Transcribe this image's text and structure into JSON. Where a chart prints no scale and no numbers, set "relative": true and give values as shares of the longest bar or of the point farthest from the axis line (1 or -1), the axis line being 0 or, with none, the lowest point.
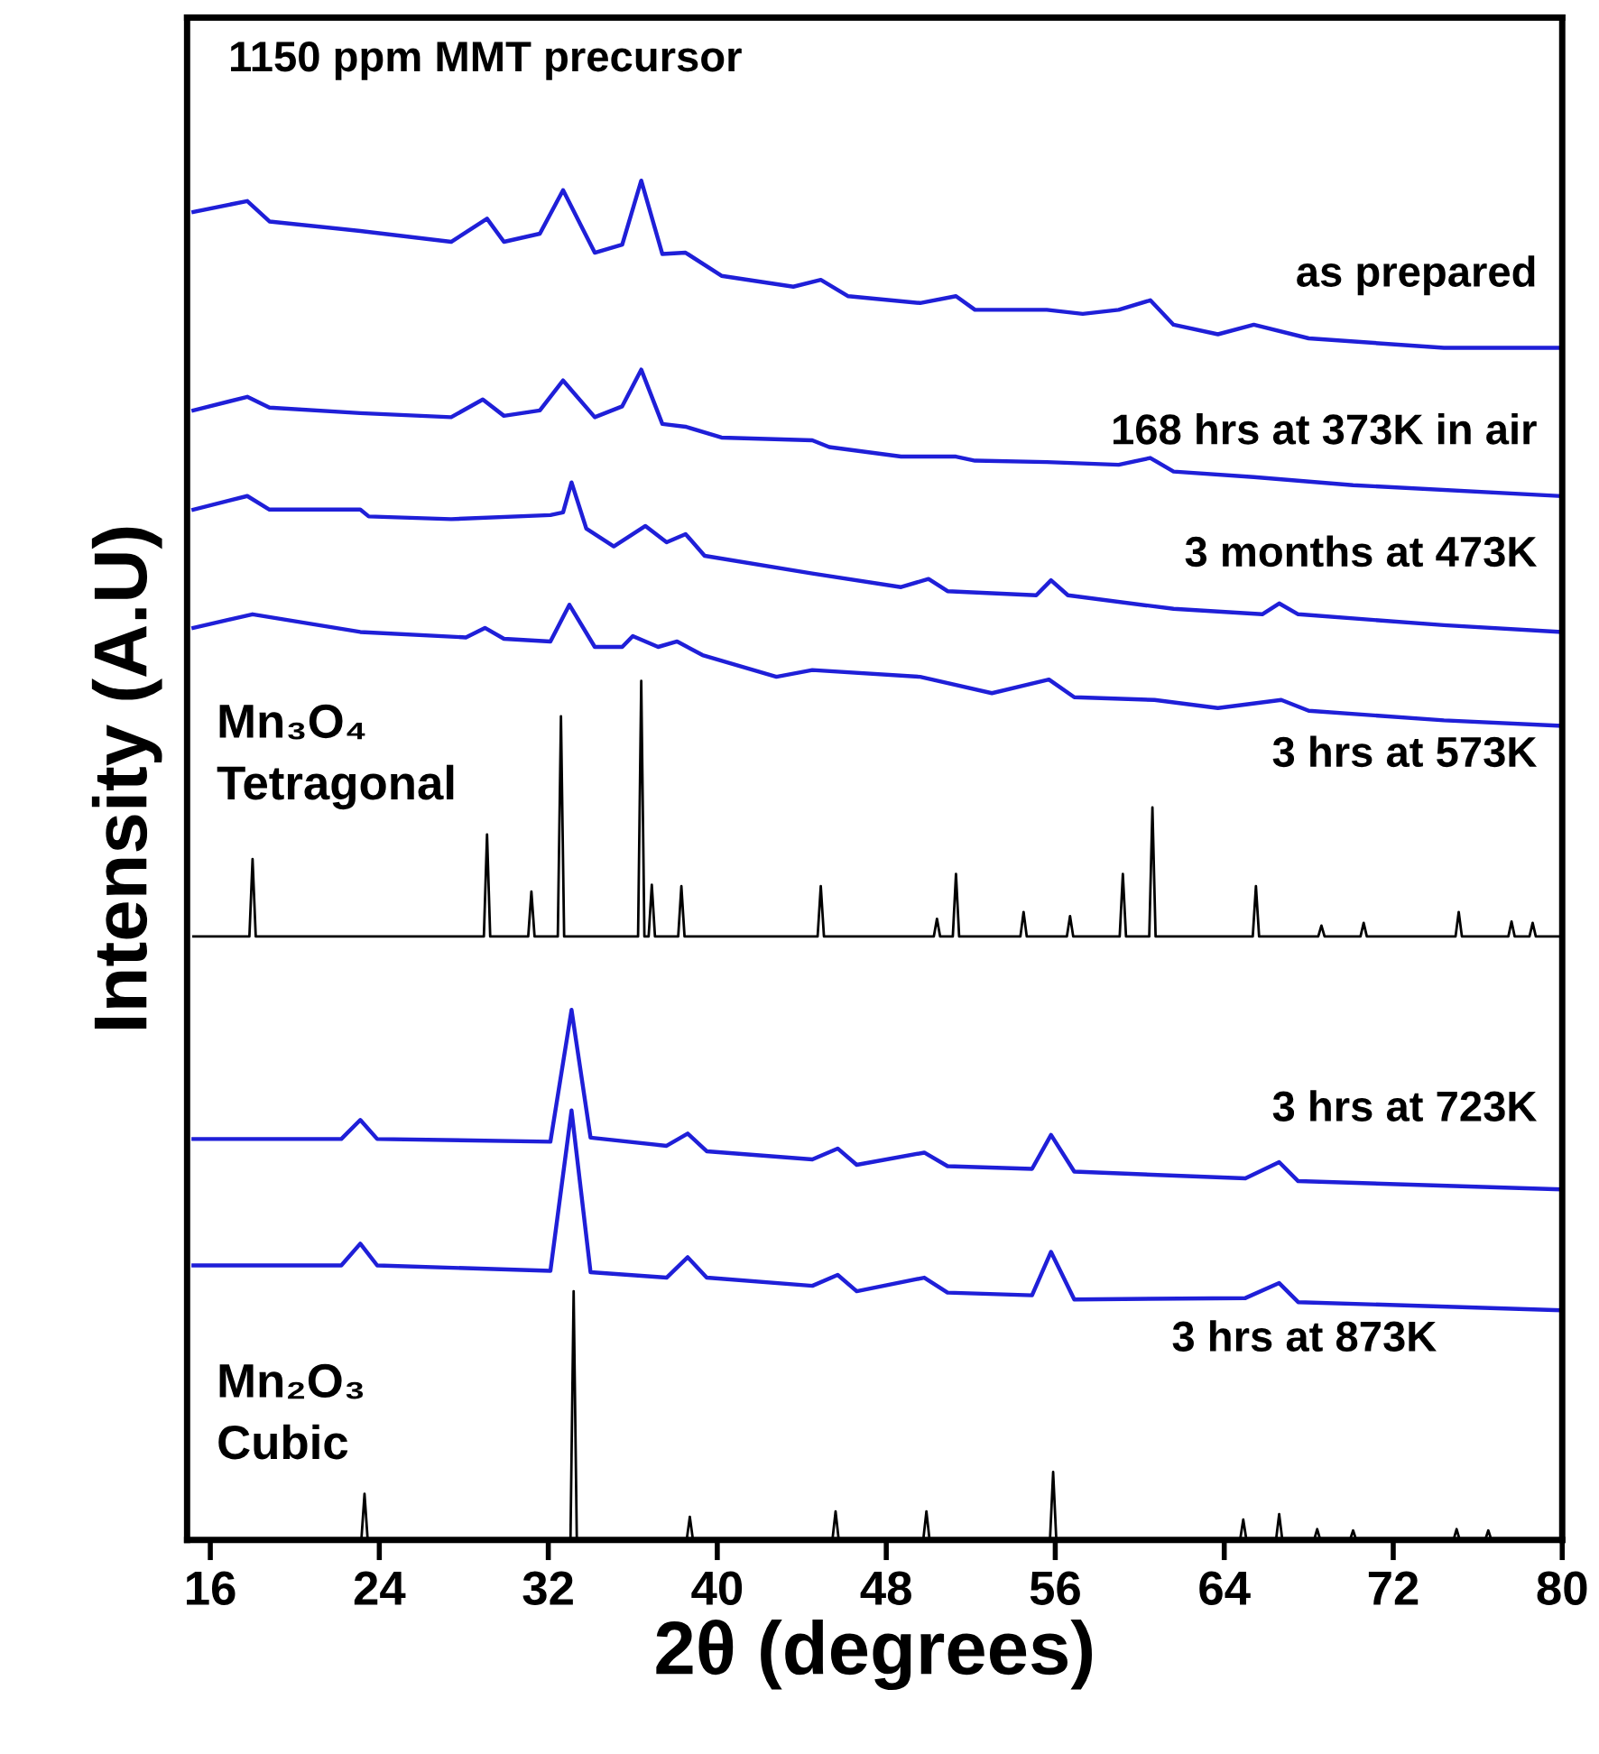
{
  "chart_data": {
    "type": "line",
    "title": "1150 ppm MMT precursor",
    "xlabel": "2θ (degrees)",
    "ylabel": "Intensity (A.U)",
    "relative": true,
    "xlim": [
      14.9,
      80
    ],
    "xticks": [
      16,
      24,
      32,
      40,
      48,
      56,
      64,
      72,
      80
    ],
    "tick_labels": "x",
    "grid": false,
    "legend": false,
    "series": [
      {
        "name": "as prepared",
        "color": "#1f1fd8",
        "x": [
          15.2,
          17.75,
          18.8,
          23.1,
          27.4,
          29.1,
          29.9,
          31.6,
          32.7,
          34.2,
          35.5,
          36.4,
          37.4,
          38.5,
          40.2,
          43.6,
          44.9,
          46.2,
          49.6,
          51.3,
          52.2,
          55.6,
          57.3,
          59.0,
          60.5,
          61.6,
          63.7,
          65.4,
          68.0,
          74.4,
          79.9
        ],
        "values": [
          0.977,
          0.985,
          0.97,
          0.963,
          0.955,
          0.972,
          0.955,
          0.961,
          0.993,
          0.947,
          0.953,
          1.0,
          0.946,
          0.947,
          0.93,
          0.922,
          0.927,
          0.915,
          0.91,
          0.915,
          0.905,
          0.905,
          0.902,
          0.905,
          0.912,
          0.894,
          0.887,
          0.894,
          0.884,
          0.877,
          0.877
        ]
      },
      {
        "name": "168 hrs at 373K in air",
        "color": "#1f1fd8",
        "x": [
          15.2,
          17.75,
          18.8,
          23.1,
          27.4,
          28.9,
          29.9,
          31.6,
          32.7,
          34.2,
          35.5,
          36.4,
          37.4,
          38.5,
          40.2,
          44.5,
          45.3,
          48.7,
          51.3,
          52.2,
          55.6,
          59.0,
          60.5,
          61.6,
          65.4,
          70.1,
          79.9
        ],
        "values": [
          0.831,
          0.841,
          0.833,
          0.829,
          0.826,
          0.839,
          0.827,
          0.831,
          0.853,
          0.826,
          0.834,
          0.861,
          0.821,
          0.819,
          0.811,
          0.809,
          0.804,
          0.797,
          0.797,
          0.794,
          0.793,
          0.791,
          0.796,
          0.786,
          0.782,
          0.776,
          0.768
        ]
      },
      {
        "name": "3 months at 473K",
        "color": "#1f1fd8",
        "x": [
          15.2,
          17.75,
          18.8,
          23.1,
          23.5,
          27.4,
          32.1,
          32.7,
          33.1,
          33.8,
          35.1,
          36.6,
          37.6,
          38.5,
          39.4,
          44.5,
          48.7,
          50.0,
          50.9,
          55.1,
          55.8,
          56.6,
          61.6,
          65.8,
          66.6,
          67.5,
          74.4,
          79.9
        ],
        "values": [
          0.758,
          0.768,
          0.758,
          0.758,
          0.753,
          0.751,
          0.754,
          0.756,
          0.778,
          0.744,
          0.731,
          0.746,
          0.734,
          0.74,
          0.724,
          0.711,
          0.701,
          0.707,
          0.698,
          0.695,
          0.706,
          0.695,
          0.685,
          0.681,
          0.689,
          0.681,
          0.673,
          0.668
        ]
      },
      {
        "name": "3 hrs at 573K",
        "color": "#1f1fd8",
        "x": [
          15.2,
          18.0,
          23.1,
          28.1,
          29.0,
          29.9,
          32.1,
          33.0,
          34.2,
          35.5,
          36.0,
          37.2,
          38.1,
          39.3,
          42.8,
          44.5,
          49.6,
          53.0,
          55.7,
          56.9,
          60.7,
          63.7,
          66.7,
          68.0,
          74.4,
          79.9
        ],
        "values": [
          0.671,
          0.681,
          0.668,
          0.664,
          0.671,
          0.663,
          0.661,
          0.688,
          0.657,
          0.657,
          0.665,
          0.657,
          0.661,
          0.651,
          0.635,
          0.64,
          0.635,
          0.623,
          0.633,
          0.62,
          0.618,
          0.612,
          0.618,
          0.61,
          0.603,
          0.599
        ]
      },
      {
        "name": "Mn₃O₄\nTetragonal",
        "color": "#000000",
        "x": [
          15.2,
          17.85,
          18.0,
          18.15,
          28.95,
          29.1,
          29.25,
          31.05,
          31.2,
          31.35,
          32.45,
          32.6,
          32.75,
          36.25,
          36.4,
          36.55,
          36.75,
          36.9,
          37.05,
          38.15,
          38.3,
          38.45,
          44.75,
          44.9,
          45.05,
          50.25,
          50.4,
          50.55,
          51.15,
          51.3,
          51.45,
          54.35,
          54.5,
          54.65,
          56.55,
          56.7,
          56.85,
          59.05,
          59.2,
          59.35,
          60.45,
          60.6,
          60.75,
          65.35,
          65.5,
          65.65,
          68.45,
          68.6,
          68.75,
          70.45,
          70.6,
          70.75,
          74.95,
          75.1,
          75.25,
          77.45,
          77.6,
          77.75,
          78.45,
          78.6,
          78.75,
          79.9
        ],
        "values": [
          0.444,
          0.444,
          0.501,
          0.444,
          0.444,
          0.519,
          0.444,
          0.444,
          0.477,
          0.444,
          0.444,
          0.606,
          0.444,
          0.444,
          0.632,
          0.444,
          0.444,
          0.482,
          0.444,
          0.444,
          0.481,
          0.444,
          0.444,
          0.481,
          0.444,
          0.444,
          0.457,
          0.444,
          0.444,
          0.49,
          0.444,
          0.444,
          0.462,
          0.444,
          0.444,
          0.459,
          0.444,
          0.444,
          0.49,
          0.444,
          0.444,
          0.539,
          0.444,
          0.444,
          0.481,
          0.444,
          0.444,
          0.452,
          0.444,
          0.444,
          0.454,
          0.444,
          0.444,
          0.462,
          0.444,
          0.444,
          0.455,
          0.444,
          0.444,
          0.454,
          0.444,
          0.444
        ]
      },
      {
        "name": "3 hrs at 723K",
        "color": "#1f1fd8",
        "x": [
          15.2,
          22.2,
          23.1,
          23.9,
          32.1,
          33.1,
          34.0,
          37.6,
          38.6,
          39.5,
          44.5,
          45.7,
          46.6,
          49.8,
          50.9,
          54.9,
          55.8,
          56.9,
          65.0,
          66.6,
          67.5,
          79.9
        ],
        "values": [
          0.295,
          0.295,
          0.309,
          0.295,
          0.293,
          0.39,
          0.296,
          0.29,
          0.299,
          0.286,
          0.28,
          0.288,
          0.276,
          0.285,
          0.275,
          0.273,
          0.298,
          0.271,
          0.266,
          0.278,
          0.264,
          0.258
        ]
      },
      {
        "name": "3 hrs at 873K",
        "color": "#1f1fd8",
        "x": [
          15.2,
          22.2,
          23.1,
          23.9,
          32.1,
          33.1,
          34.0,
          37.6,
          38.6,
          39.5,
          44.5,
          45.7,
          46.6,
          49.8,
          50.9,
          54.9,
          55.8,
          56.9,
          65.0,
          66.6,
          67.5,
          79.9
        ],
        "values": [
          0.202,
          0.202,
          0.218,
          0.202,
          0.198,
          0.316,
          0.197,
          0.193,
          0.208,
          0.193,
          0.187,
          0.195,
          0.183,
          0.193,
          0.182,
          0.18,
          0.212,
          0.177,
          0.178,
          0.189,
          0.175,
          0.169
        ]
      },
      {
        "name": "Mn₂O₃\nCubic",
        "color": "#000000",
        "x": [
          15.2,
          23.15,
          23.3,
          23.45,
          33.05,
          33.2,
          33.35,
          38.55,
          38.7,
          38.85,
          45.45,
          45.6,
          45.75,
          49.75,
          49.9,
          50.05,
          55.75,
          55.9,
          56.05,
          64.75,
          64.9,
          65.05,
          66.45,
          66.6,
          66.75,
          68.25,
          68.4,
          68.55,
          69.95,
          70.1,
          70.25,
          74.85,
          75.0,
          75.15,
          76.35,
          76.5,
          76.65,
          79.9
        ],
        "values": [
          0,
          0,
          0.034,
          0,
          0,
          0.183,
          0,
          0,
          0.017,
          0,
          0,
          0.021,
          0,
          0,
          0.021,
          0,
          0,
          0.05,
          0,
          0,
          0.015,
          0,
          0,
          0.019,
          0,
          0,
          0.008,
          0,
          0,
          0.007,
          0,
          0,
          0.008,
          0,
          0,
          0.007,
          0,
          0
        ]
      }
    ]
  }
}
